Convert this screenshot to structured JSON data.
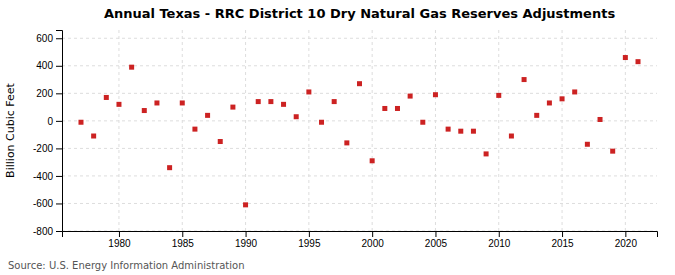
{
  "chart_data": {
    "type": "scatter",
    "title": "Annual Texas - RRC District 10 Dry Natural Gas Reserves Adjustments",
    "ylabel": "Billion Cubic Feet",
    "source": "Source: U.S. Energy Information Administration",
    "x": [
      1977,
      1978,
      1979,
      1980,
      1981,
      1982,
      1983,
      1984,
      1985,
      1986,
      1987,
      1988,
      1989,
      1990,
      1991,
      1992,
      1993,
      1994,
      1995,
      1996,
      1997,
      1998,
      1999,
      2000,
      2001,
      2002,
      2003,
      2004,
      2005,
      2006,
      2007,
      2008,
      2009,
      2010,
      2011,
      2012,
      2013,
      2014,
      2015,
      2016,
      2017,
      2018,
      2019,
      2020,
      2021
    ],
    "values": [
      -10,
      -110,
      170,
      120,
      390,
      75,
      130,
      -340,
      130,
      -60,
      40,
      -150,
      100,
      -610,
      140,
      140,
      120,
      30,
      210,
      -10,
      140,
      -160,
      270,
      -290,
      90,
      90,
      180,
      -10,
      190,
      -60,
      -75,
      -75,
      -240,
      185,
      -110,
      300,
      40,
      130,
      160,
      210,
      -170,
      10,
      -220,
      460,
      430
    ],
    "color": "#cc2222",
    "marker": "square",
    "xlim": [
      1975.5,
      2022.5
    ],
    "xticks": [
      1980,
      1985,
      1990,
      1995,
      2000,
      2005,
      2010,
      2015,
      2020
    ],
    "ylim": [
      -800,
      660
    ],
    "yticks": [
      -800,
      -600,
      -400,
      -200,
      0,
      200,
      400,
      600
    ],
    "grid": true
  }
}
